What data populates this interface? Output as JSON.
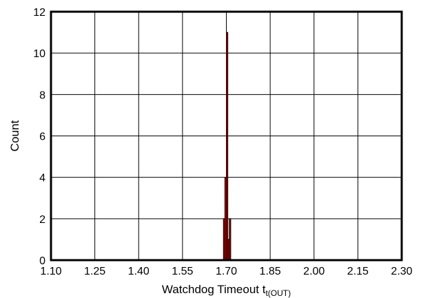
{
  "chart_data": {
    "type": "bar",
    "title": "",
    "xlabel": "Watchdog Timeout t",
    "xlabel_subscript": "t(OUT)",
    "ylabel": "Count",
    "xlim": [
      1.1,
      2.3
    ],
    "ylim": [
      0,
      12
    ],
    "x_ticks": [
      "1.10",
      "1.25",
      "1.40",
      "1.55",
      "1.70",
      "1.85",
      "2.00",
      "2.15",
      "2.30"
    ],
    "y_ticks": [
      "0",
      "2",
      "4",
      "6",
      "8",
      "10",
      "12"
    ],
    "grid": true,
    "legend": "none",
    "bin_width": 0.005,
    "x": [
      1.6925,
      1.6975,
      1.7025,
      1.7075,
      1.7125
    ],
    "values": [
      2,
      4,
      11,
      1,
      2
    ],
    "bar_color": "#cc0000",
    "bar_edge_color": "#000000"
  }
}
